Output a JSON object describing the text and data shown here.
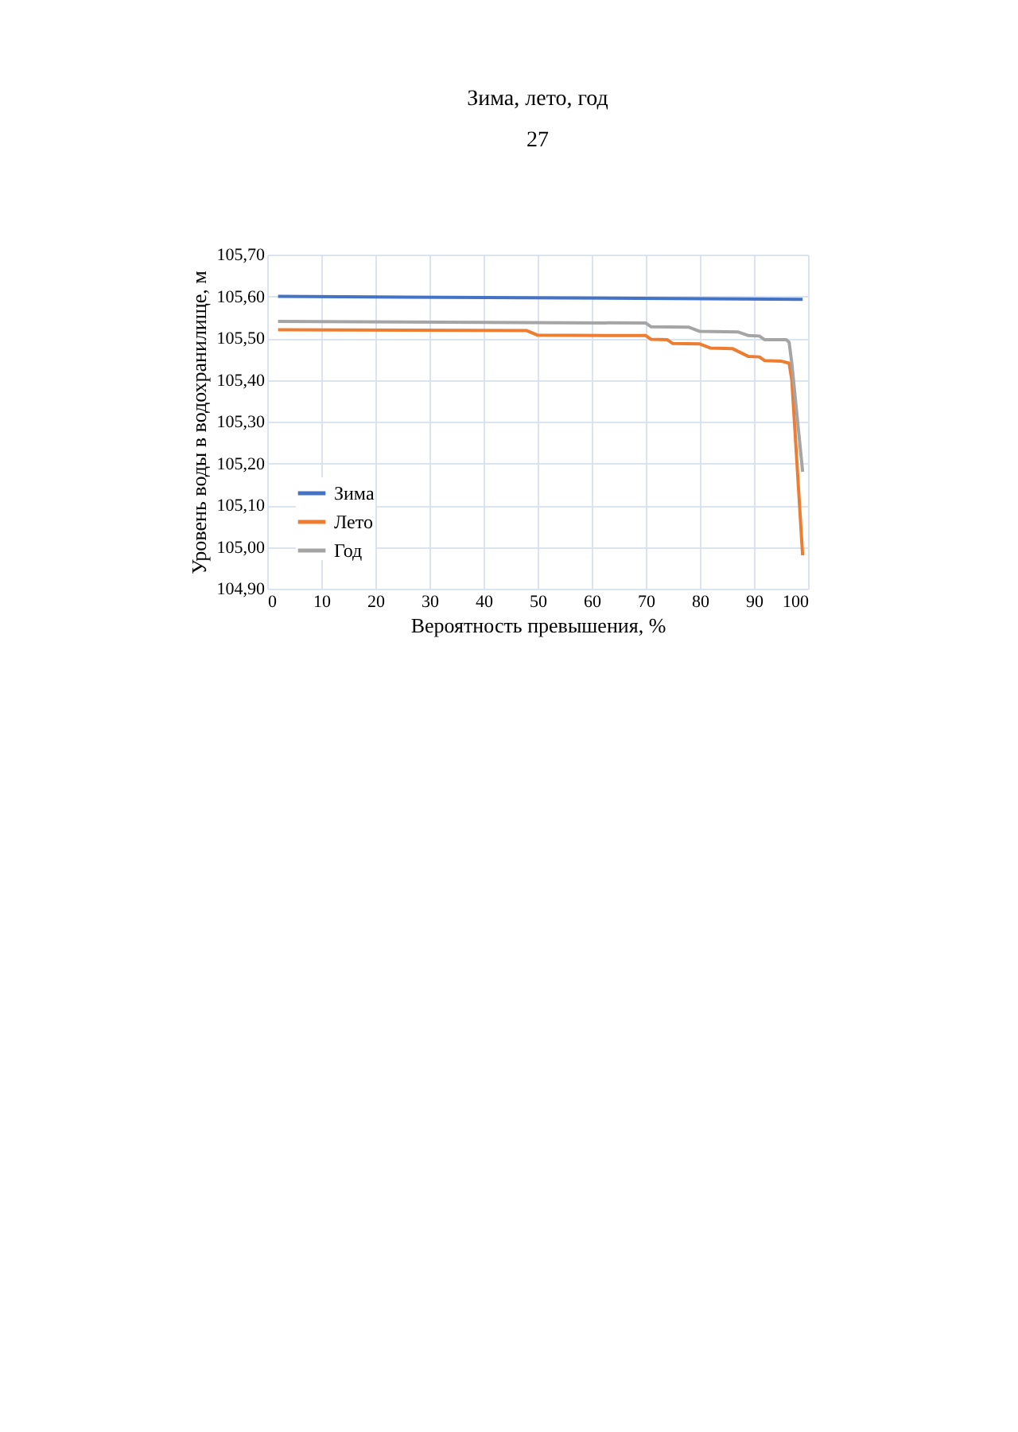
{
  "chart_data": {
    "type": "line",
    "title": "Зима, лето, год",
    "annotations": [
      "27"
    ],
    "xlabel": "Вероятность превышения, %",
    "ylabel": "Уровень воды в водохранилище, м",
    "xlim": [
      0,
      100
    ],
    "xticks": [
      0,
      10,
      20,
      30,
      40,
      50,
      60,
      70,
      80,
      90,
      100
    ],
    "ylim": [
      104.9,
      105.7
    ],
    "yticks": [
      {
        "value": 104.9,
        "label": "104,90"
      },
      {
        "value": 105.0,
        "label": "105,00"
      },
      {
        "value": 105.1,
        "label": "105,10"
      },
      {
        "value": 105.2,
        "label": "105,20"
      },
      {
        "value": 105.3,
        "label": "105,30"
      },
      {
        "value": 105.4,
        "label": "105,40"
      },
      {
        "value": 105.5,
        "label": "105,50"
      },
      {
        "value": 105.6,
        "label": "105,60"
      },
      {
        "value": 105.7,
        "label": "105,70"
      }
    ],
    "grid": true,
    "legend": "bottom left",
    "marker": "none",
    "line_style": "solid",
    "series": [
      {
        "name": "Зима",
        "color": "#4472c4",
        "x": [
          2,
          99
        ],
        "values": [
          105.6,
          105.593
        ]
      },
      {
        "name": "Лето",
        "color": "#ed7d31",
        "x": [
          2,
          48,
          50,
          70,
          71,
          74,
          75,
          80,
          82,
          86,
          89,
          91,
          92,
          95,
          96.5,
          97,
          99
        ],
        "values": [
          105.52,
          105.518,
          105.507,
          105.506,
          105.497,
          105.496,
          105.487,
          105.486,
          105.476,
          105.475,
          105.456,
          105.455,
          105.446,
          105.445,
          105.44,
          105.4,
          104.98
        ]
      },
      {
        "name": "Год",
        "color": "#a5a5a5",
        "x": [
          2,
          70,
          71,
          78,
          80,
          87,
          89,
          91,
          92,
          96,
          96.5,
          97,
          99
        ],
        "values": [
          105.54,
          105.536,
          105.527,
          105.526,
          105.516,
          105.515,
          105.506,
          105.505,
          105.496,
          105.496,
          105.49,
          105.44,
          105.18
        ]
      }
    ]
  }
}
